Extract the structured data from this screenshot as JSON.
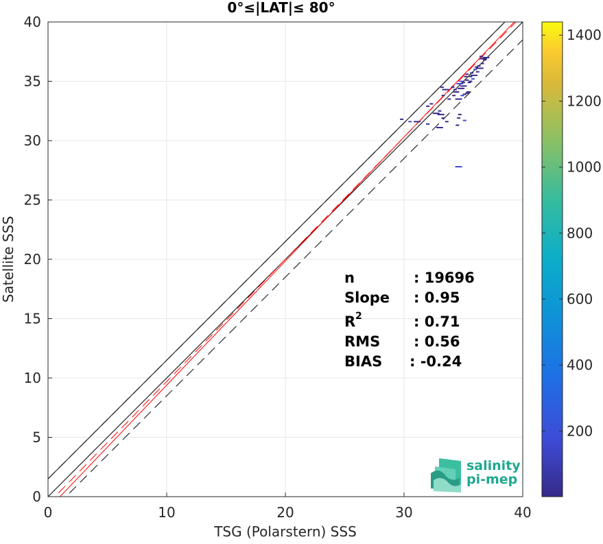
{
  "chart_data": {
    "type": "scatter",
    "subtype": "density-scatter",
    "title": "0°≤|LAT|≤ 80°",
    "xlabel": "TSG (Polarstern) SSS",
    "ylabel": "Satellite SSS",
    "xlim": [
      0,
      40
    ],
    "ylim": [
      0,
      40
    ],
    "xticks": [
      0,
      10,
      20,
      30,
      40
    ],
    "yticks": [
      0,
      5,
      10,
      15,
      20,
      25,
      30,
      35,
      40
    ],
    "grid": true,
    "colorbar": {
      "ticks": [
        200,
        400,
        600,
        800,
        1000,
        1200,
        1400
      ],
      "range": [
        1,
        1440
      ],
      "colormap": "parula"
    },
    "stats": [
      {
        "label": "n",
        "value": ": 19696"
      },
      {
        "label": "Slope",
        "value": ": 0.95"
      },
      {
        "label": "R",
        "sup": "2",
        "value": ": 0.71"
      },
      {
        "label": "RMS",
        "value": ": 0.56"
      },
      {
        "label": "BIAS",
        "value": ": -0.24"
      }
    ],
    "reference_lines": {
      "one_to_one": {
        "style": "solid",
        "color": "#000000",
        "offset": 0
      },
      "envelope": {
        "style": "dashed",
        "color": "#000000",
        "offsets": [
          1.5,
          -1.5
        ]
      },
      "regression_fit": {
        "style": "solid",
        "color": "#ff0000",
        "slope": 1.045,
        "intercept": -1.05
      },
      "secondary_fit": {
        "style": "dashed",
        "color": "#ff0000",
        "slope": 1.03,
        "intercept": -0.6
      },
      "extra_line": {
        "style": "solid",
        "color": "#000000",
        "slope": 1.0,
        "intercept": 1.5
      }
    },
    "points": [
      [
        34.6,
        27.8
      ],
      [
        32.0,
        32.9
      ],
      [
        33.0,
        32.5
      ],
      [
        34.7,
        32.2
      ],
      [
        33.1,
        32.2
      ],
      [
        33.3,
        31.9
      ],
      [
        29.8,
        31.8
      ],
      [
        30.5,
        31.6
      ],
      [
        31.1,
        31.6
      ],
      [
        32.0,
        31.4
      ],
      [
        33.6,
        31.6
      ],
      [
        34.6,
        31.9
      ],
      [
        33.0,
        31.1
      ],
      [
        34.5,
        31.3
      ],
      [
        35.1,
        31.7
      ],
      [
        32.3,
        33.1
      ],
      [
        32.7,
        32.3
      ],
      [
        33.3,
        33.8
      ],
      [
        33.8,
        33.5
      ],
      [
        34.2,
        33.8
      ],
      [
        34.6,
        33.5
      ],
      [
        34.9,
        33.8
      ],
      [
        35.3,
        34.0
      ],
      [
        34.3,
        34.3
      ],
      [
        34.8,
        34.4
      ],
      [
        33.2,
        34.5
      ],
      [
        34.1,
        34.5
      ],
      [
        35.4,
        34.1
      ],
      [
        34.7,
        34.8
      ],
      [
        35.0,
        34.9
      ],
      [
        35.3,
        35.1
      ],
      [
        35.6,
        35.4
      ],
      [
        35.0,
        34.6
      ],
      [
        35.2,
        35.4
      ],
      [
        35.7,
        35.7
      ],
      [
        36.0,
        36.0
      ],
      [
        35.9,
        35.5
      ],
      [
        36.3,
        36.3
      ],
      [
        36.6,
        36.5
      ],
      [
        36.8,
        36.8
      ],
      [
        36.4,
        36.1
      ],
      [
        36.1,
        36.2
      ],
      [
        35.8,
        35.2
      ],
      [
        36.5,
        37.1
      ],
      [
        36.9,
        37.0
      ],
      [
        35.5,
        34.9
      ],
      [
        34.5,
        34.1
      ],
      [
        34.3,
        34.1
      ],
      [
        33.5,
        34.3
      ],
      [
        34.8,
        35.0
      ],
      [
        35.3,
        35.6
      ],
      [
        36.2,
        35.8
      ],
      [
        36.7,
        36.9
      ],
      [
        35.1,
        33.9
      ],
      [
        35.6,
        35.0
      ]
    ]
  },
  "logo": {
    "line1": "salinity",
    "line2": "pi-mep"
  }
}
